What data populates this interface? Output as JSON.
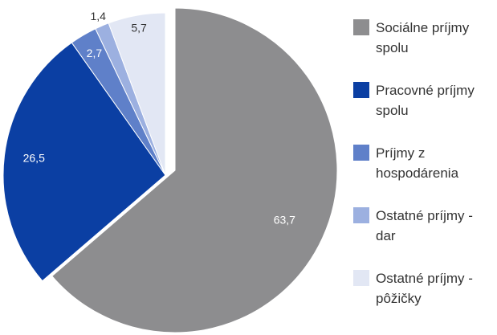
{
  "chart_data": {
    "type": "pie",
    "categories": [
      "Sociálne príjmy spolu",
      "Pracovné príjmy spolu",
      "Príjmy z hospodárenia",
      "Ostatné príjmy - dar",
      "Ostatné príjmy - pôžičky"
    ],
    "values": [
      63.7,
      26.5,
      2.7,
      1.4,
      5.7
    ],
    "value_labels": [
      "63,7",
      "26,5",
      "2,7",
      "1,4",
      "5,7"
    ],
    "colors": [
      "#8d8d8f",
      "#0b3fa3",
      "#5f80c9",
      "#9cb0e0",
      "#e2e7f4"
    ],
    "legend": "right"
  }
}
